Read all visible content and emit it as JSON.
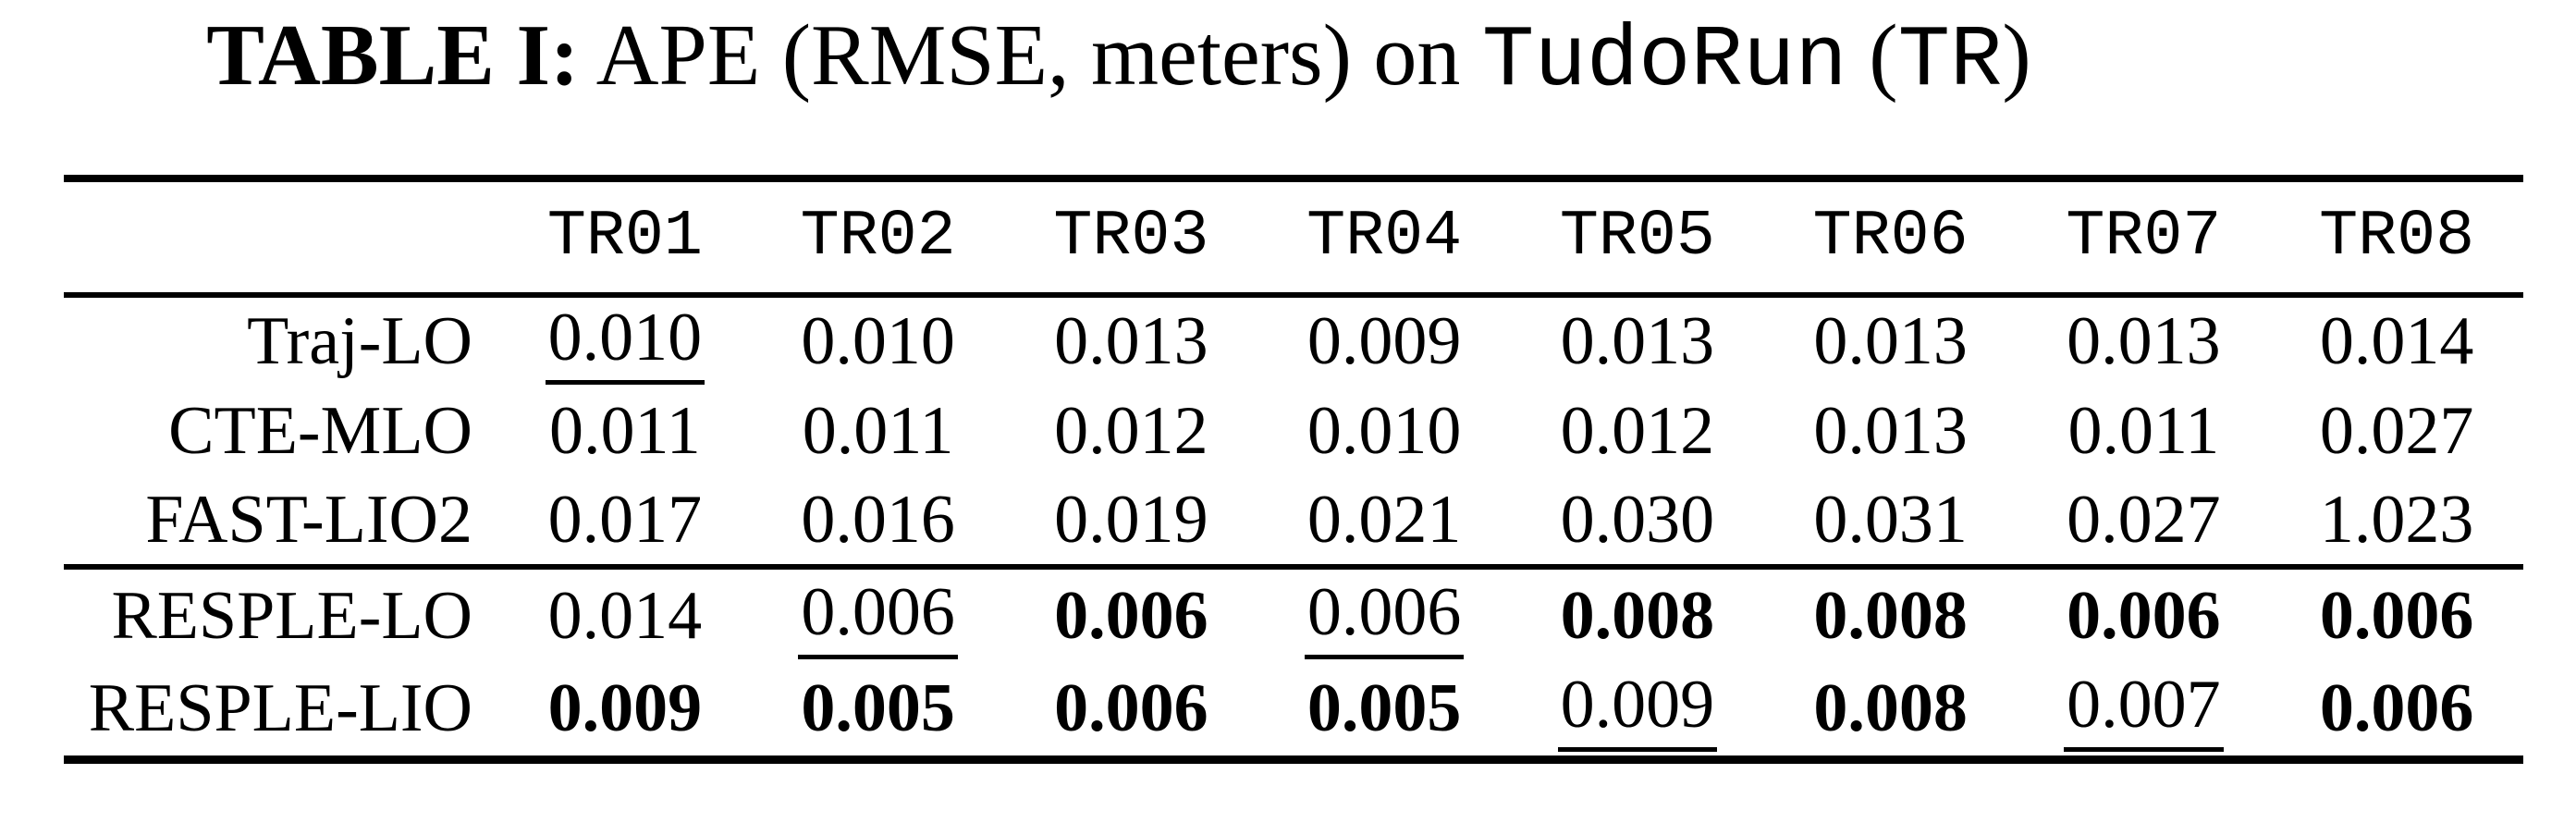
{
  "title": {
    "tag": "TABLE I:",
    "lead": " APE (RMSE, meters) on ",
    "dataset": "TudoRun",
    "mid": " (",
    "abbr": "TR",
    "tail": ")"
  },
  "chart_data": {
    "type": "table",
    "title": "TABLE I: APE (RMSE, meters) on TudoRun (TR)",
    "columns": [
      "TR01",
      "TR02",
      "TR03",
      "TR04",
      "TR05",
      "TR06",
      "TR07",
      "TR08"
    ],
    "rows": [
      {
        "label": "Traj-LO",
        "values": [
          0.01,
          0.01,
          0.013,
          0.009,
          0.013,
          0.013,
          0.013,
          0.014
        ]
      },
      {
        "label": "CTE-MLO",
        "values": [
          0.011,
          0.011,
          0.012,
          0.01,
          0.012,
          0.013,
          0.011,
          0.027
        ]
      },
      {
        "label": "FAST-LIO2",
        "values": [
          0.017,
          0.016,
          0.019,
          0.021,
          0.03,
          0.031,
          0.027,
          1.023
        ]
      },
      {
        "label": "RESPLE-LO",
        "values": [
          0.014,
          0.006,
          0.006,
          0.006,
          0.008,
          0.008,
          0.006,
          0.006
        ]
      },
      {
        "label": "RESPLE-LIO",
        "values": [
          0.009,
          0.005,
          0.006,
          0.005,
          0.009,
          0.008,
          0.007,
          0.006
        ]
      }
    ]
  },
  "table": {
    "header": [
      "TR01",
      "TR02",
      "TR03",
      "TR04",
      "TR05",
      "TR06",
      "TR07",
      "TR08"
    ],
    "rows": [
      {
        "label": "Traj-LO",
        "cells": [
          {
            "v": "0.010",
            "s": "underline"
          },
          {
            "v": "0.010",
            "s": "plain"
          },
          {
            "v": "0.013",
            "s": "plain"
          },
          {
            "v": "0.009",
            "s": "plain"
          },
          {
            "v": "0.013",
            "s": "plain"
          },
          {
            "v": "0.013",
            "s": "plain"
          },
          {
            "v": "0.013",
            "s": "plain"
          },
          {
            "v": "0.014",
            "s": "plain"
          }
        ]
      },
      {
        "label": "CTE-MLO",
        "cells": [
          {
            "v": "0.011",
            "s": "plain"
          },
          {
            "v": "0.011",
            "s": "plain"
          },
          {
            "v": "0.012",
            "s": "plain"
          },
          {
            "v": "0.010",
            "s": "plain"
          },
          {
            "v": "0.012",
            "s": "plain"
          },
          {
            "v": "0.013",
            "s": "plain"
          },
          {
            "v": "0.011",
            "s": "plain"
          },
          {
            "v": "0.027",
            "s": "plain"
          }
        ]
      },
      {
        "label": "FAST-LIO2",
        "cells": [
          {
            "v": "0.017",
            "s": "plain"
          },
          {
            "v": "0.016",
            "s": "plain"
          },
          {
            "v": "0.019",
            "s": "plain"
          },
          {
            "v": "0.021",
            "s": "plain"
          },
          {
            "v": "0.030",
            "s": "plain"
          },
          {
            "v": "0.031",
            "s": "plain"
          },
          {
            "v": "0.027",
            "s": "plain"
          },
          {
            "v": "1.023",
            "s": "plain"
          }
        ]
      },
      {
        "label": "RESPLE-LO",
        "cells": [
          {
            "v": "0.014",
            "s": "plain"
          },
          {
            "v": "0.006",
            "s": "underline"
          },
          {
            "v": "0.006",
            "s": "bold"
          },
          {
            "v": "0.006",
            "s": "underline"
          },
          {
            "v": "0.008",
            "s": "bold"
          },
          {
            "v": "0.008",
            "s": "bold"
          },
          {
            "v": "0.006",
            "s": "bold"
          },
          {
            "v": "0.006",
            "s": "bold"
          }
        ]
      },
      {
        "label": "RESPLE-LIO",
        "cells": [
          {
            "v": "0.009",
            "s": "bold"
          },
          {
            "v": "0.005",
            "s": "bold"
          },
          {
            "v": "0.006",
            "s": "bold"
          },
          {
            "v": "0.005",
            "s": "bold"
          },
          {
            "v": "0.009",
            "s": "underline"
          },
          {
            "v": "0.008",
            "s": "bold"
          },
          {
            "v": "0.007",
            "s": "underline"
          },
          {
            "v": "0.006",
            "s": "bold"
          }
        ]
      }
    ]
  }
}
